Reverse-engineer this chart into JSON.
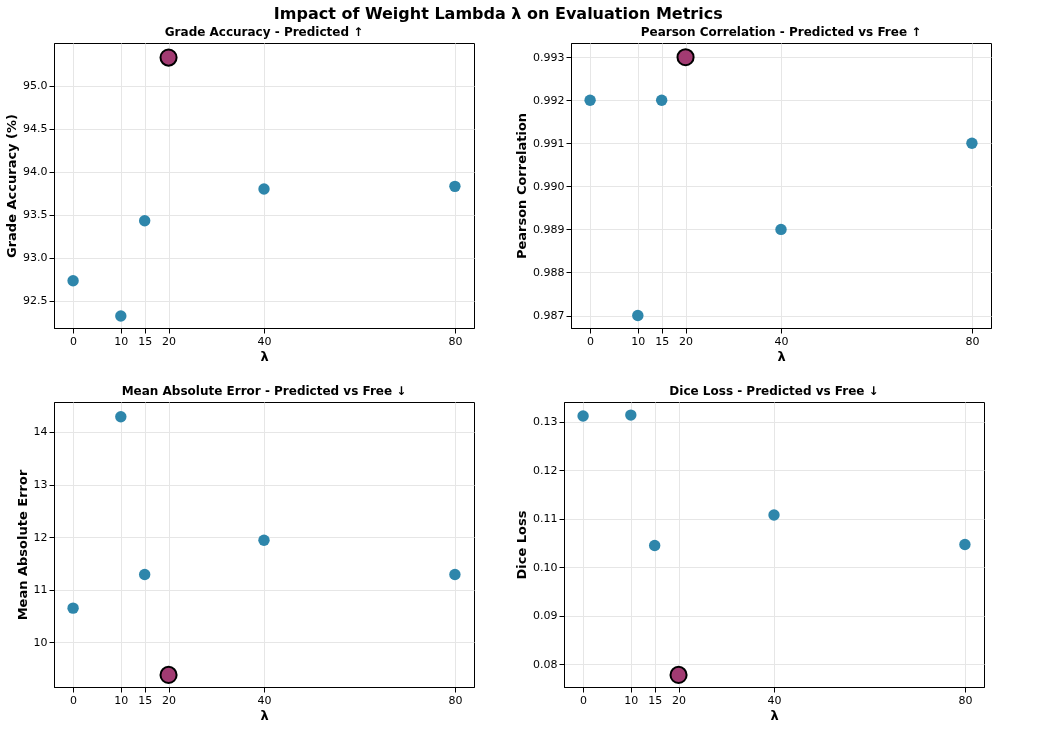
{
  "chart_data": [
    {
      "type": "scatter",
      "title": "Grade Accuracy - Predicted ↑",
      "xlabel": "λ",
      "ylabel": "Grade Accuracy (%)",
      "annotations": [
        "Impact of Weight Lambda λ on Evaluation Metrics"
      ],
      "xlim": [
        -4,
        84
      ],
      "xticks": [
        0,
        10,
        15,
        20,
        40,
        80
      ],
      "ylim": [
        92.18,
        95.5
      ],
      "yticks": [
        92.5,
        {
          "value": 93,
          "label": "93.0"
        },
        93.5,
        {
          "value": 94,
          "label": "94.0"
        },
        94.5,
        {
          "value": 95,
          "label": "95.0"
        }
      ],
      "grid": true,
      "legend": false,
      "marker": "circle",
      "series": [
        {
          "color": "#2e86ab",
          "x": [
            0,
            10,
            15,
            40,
            80
          ],
          "values": [
            92.73,
            92.32,
            93.43,
            93.8,
            93.83
          ]
        },
        {
          "color": "#a23b72",
          "x": [
            20
          ],
          "values": [
            95.33
          ]
        }
      ]
    },
    {
      "type": "scatter",
      "title": "Pearson Correlation - Predicted vs Free ↑",
      "xlabel": "λ",
      "ylabel": "Pearson Correlation",
      "xlim": [
        -4,
        84
      ],
      "xticks": [
        0,
        10,
        15,
        20,
        40,
        80
      ],
      "ylim": [
        0.98671,
        0.99333
      ],
      "yticks": [
        0.987,
        0.988,
        0.989,
        {
          "value": 0.99,
          "label": "0.990"
        },
        0.991,
        0.992,
        0.993
      ],
      "grid": true,
      "legend": false,
      "marker": "circle",
      "series": [
        {
          "color": "#2e86ab",
          "x": [
            0,
            10,
            15,
            40,
            80
          ],
          "values": [
            0.992,
            0.987,
            0.992,
            0.989,
            0.991
          ]
        },
        {
          "color": "#a23b72",
          "x": [
            20
          ],
          "values": [
            0.993
          ]
        }
      ]
    },
    {
      "type": "scatter",
      "title": "Mean Absolute Error - Predicted vs Free ↓",
      "xlabel": "λ",
      "ylabel": "Mean Absolute Error",
      "xlim": [
        -4,
        84
      ],
      "xticks": [
        0,
        10,
        15,
        20,
        40,
        80
      ],
      "ylim": [
        9.15,
        14.57
      ],
      "yticks": [
        10,
        11,
        12,
        13,
        14
      ],
      "grid": true,
      "legend": false,
      "marker": "circle",
      "series": [
        {
          "color": "#2e86ab",
          "x": [
            0,
            10,
            15,
            40,
            80
          ],
          "values": [
            10.65,
            14.29,
            11.29,
            11.94,
            11.29
          ]
        },
        {
          "color": "#a23b72",
          "x": [
            20
          ],
          "values": [
            9.38
          ]
        }
      ]
    },
    {
      "type": "scatter",
      "title": "Dice Loss - Predicted vs Free ↓",
      "xlabel": "λ",
      "ylabel": "Dice Loss",
      "xlim": [
        -4,
        84
      ],
      "xticks": [
        0,
        10,
        15,
        20,
        40,
        80
      ],
      "ylim": [
        0.0753,
        0.1341
      ],
      "yticks": [
        0.08,
        0.09,
        {
          "value": 0.1,
          "label": "0.10"
        },
        0.11,
        0.12,
        0.13
      ],
      "grid": true,
      "legend": false,
      "marker": "circle",
      "series": [
        {
          "color": "#2e86ab",
          "x": [
            0,
            10,
            15,
            40,
            80
          ],
          "values": [
            0.1312,
            0.1314,
            0.1045,
            0.1108,
            0.1047
          ]
        },
        {
          "color": "#a23b72",
          "x": [
            20
          ],
          "values": [
            0.0778
          ]
        }
      ]
    }
  ]
}
